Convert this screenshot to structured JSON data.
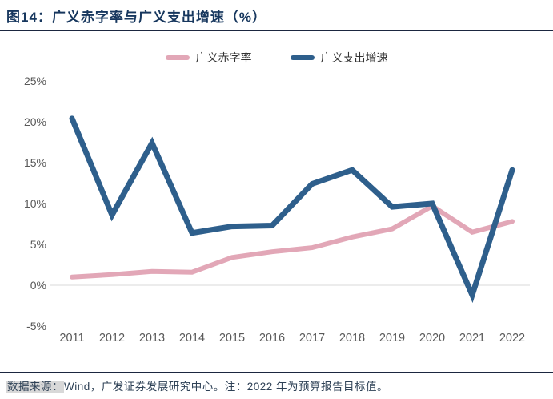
{
  "header": {
    "title": "图14：广义赤字率与广义支出增速（%）"
  },
  "legend": [
    {
      "label": "广义赤字率",
      "color": "#E2A7B7"
    },
    {
      "label": "广义支出增速",
      "color": "#2E5F8C"
    }
  ],
  "chart_data": {
    "type": "line",
    "title": "广义赤字率与广义支出增速（%）",
    "categories": [
      "2011",
      "2012",
      "2013",
      "2014",
      "2015",
      "2016",
      "2017",
      "2018",
      "2019",
      "2020",
      "2021",
      "2022"
    ],
    "series": [
      {
        "name": "广义赤字率",
        "color": "#E2A7B7",
        "width": 6,
        "values": [
          1.0,
          1.3,
          1.7,
          1.6,
          3.4,
          4.1,
          4.6,
          5.9,
          6.9,
          9.7,
          6.5,
          7.8
        ]
      },
      {
        "name": "广义支出增速",
        "color": "#2E5F8C",
        "width": 7,
        "values": [
          20.4,
          8.6,
          17.4,
          6.4,
          7.2,
          7.3,
          12.4,
          14.1,
          9.6,
          10.0,
          -1.2,
          14.1
        ]
      }
    ],
    "xlabel": "",
    "ylabel": "",
    "ylim": [
      -5,
      25
    ],
    "yticks": [
      {
        "label": "25%",
        "value": 25
      },
      {
        "label": "20%",
        "value": 20
      },
      {
        "label": "15%",
        "value": 15
      },
      {
        "label": "10%",
        "value": 10
      },
      {
        "label": "5%",
        "value": 5
      },
      {
        "label": "0%",
        "value": 0
      },
      {
        "label": "-5%",
        "value": -5
      }
    ],
    "grid": "horizontal gridline at 0% only",
    "legend_position": "top-center",
    "tick_color": "#595959",
    "gridline_color": "#d9d9d9"
  },
  "footer": {
    "source_label": "数据来源：",
    "source_text": "Wind，广发证券发展研究中心。注：2022 年为预算报告目标值。"
  },
  "colors": {
    "title": "#17375E",
    "rule": "#1b2740",
    "deficit_line": "#E2A7B7",
    "expenditure_line": "#2E5F8C",
    "axis_text": "#595959",
    "gridline": "#d9d9d9",
    "footer_text": "#2E4156",
    "source_label_highlight": "#d8d8d8"
  }
}
